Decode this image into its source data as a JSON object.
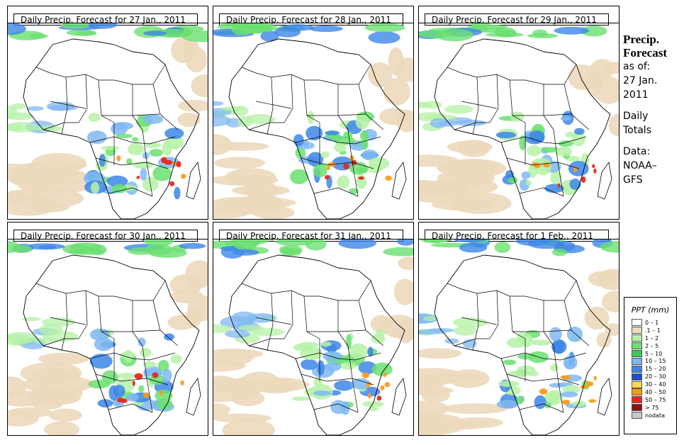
{
  "panels": [
    {
      "title": "Daily Precip. Forecast for  27 Jan., 2011",
      "seed": 11
    },
    {
      "title": "Daily Precip. Forecast for  28 Jan., 2011",
      "seed": 23
    },
    {
      "title": "Daily Precip. Forecast for  29 Jan., 2011",
      "seed": 37
    },
    {
      "title": "Daily Precip. Forecast for  30 Jan., 2011",
      "seed": 41
    },
    {
      "title": "Daily Precip. Forecast for  31 Jan., 2011",
      "seed": 53
    },
    {
      "title": "Daily Precip. Forecast for  1 Feb., 2011",
      "seed": 67
    }
  ],
  "side": {
    "title_line1": "Precip.",
    "title_line2": "Forecast",
    "asof_line1": "as of:",
    "asof_line2": "27 Jan.",
    "asof_line3": "2011",
    "totals_line1": "Daily",
    "totals_line2": "Totals",
    "data_line1": "Data:",
    "data_line2": "NOAA–",
    "data_line3": "GFS"
  },
  "legend": {
    "title": "PPT (mm)",
    "items": [
      {
        "label": "0 – 1",
        "color": "#ffffff"
      },
      {
        "label": ".1 – 1",
        "color": "#ecd9bd"
      },
      {
        "label": "1 – 2",
        "color": "#b6f2a6"
      },
      {
        "label": "2 – 5",
        "color": "#6ae070"
      },
      {
        "label": "5 – 10",
        "color": "#3cc85a"
      },
      {
        "label": "10 – 15",
        "color": "#7fb8f2"
      },
      {
        "label": "15 – 20",
        "color": "#3d86e8"
      },
      {
        "label": "20 – 30",
        "color": "#1a4fd0"
      },
      {
        "label": "30 – 40",
        "color": "#ffd84a"
      },
      {
        "label": "40 – 50",
        "color": "#ff9a1a"
      },
      {
        "label": "50 – 75",
        "color": "#e8281a"
      },
      {
        "label": "> 75",
        "color": "#8c1010"
      },
      {
        "label": "nodata",
        "color": "#c8c8c8"
      }
    ]
  }
}
